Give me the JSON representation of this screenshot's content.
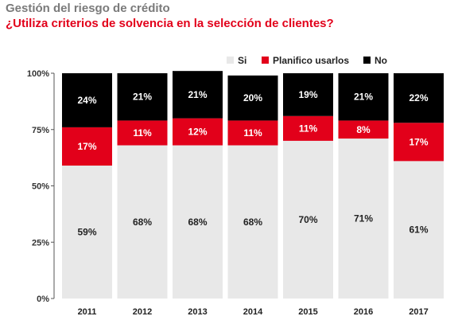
{
  "chart_data": {
    "type": "bar",
    "stacked": true,
    "title": "Gestión del riesgo de crédito",
    "subtitle": "¿Utiliza criterios de solvencia en la selección de clientes?",
    "categories": [
      "2011",
      "2012",
      "2013",
      "2014",
      "2015",
      "2016",
      "2017"
    ],
    "series": [
      {
        "name": "Si",
        "color": "#e8e8e8",
        "label_color": "#222222",
        "values": [
          59,
          68,
          68,
          68,
          70,
          71,
          61
        ]
      },
      {
        "name": "Planifico usarlos",
        "color": "#e2001a",
        "label_color": "#ffffff",
        "values": [
          17,
          11,
          12,
          11,
          11,
          8,
          17
        ]
      },
      {
        "name": "No",
        "color": "#000000",
        "label_color": "#ffffff",
        "values": [
          24,
          21,
          21,
          20,
          19,
          21,
          22
        ]
      }
    ],
    "value_suffix": "%",
    "yticks": [
      "0%",
      "25%",
      "50%",
      "75%",
      "100%"
    ],
    "ylim": [
      0,
      100
    ],
    "legend_position": "top-right",
    "grid": false
  }
}
